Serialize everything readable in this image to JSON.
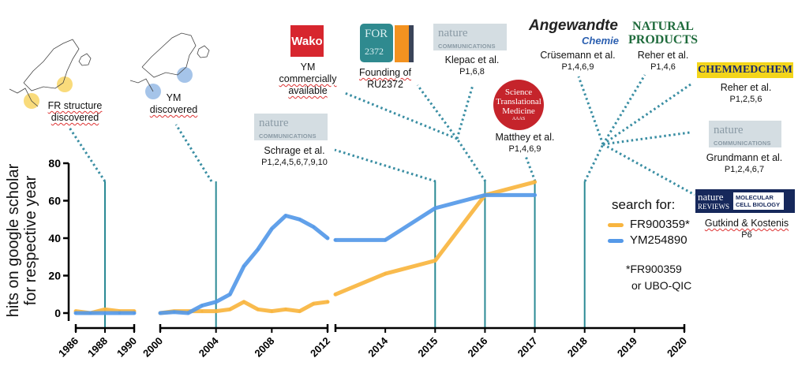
{
  "chart_data": {
    "type": "line",
    "ylabel_lines": [
      "hits on google scholar",
      "for respective year"
    ],
    "ylim": [
      0,
      80
    ],
    "yticks": [
      0,
      20,
      40,
      60,
      80
    ],
    "x_segments": [
      [
        1986,
        1990
      ],
      [
        2000,
        2012
      ],
      [
        2013,
        2020
      ]
    ],
    "xtick_labels": [
      "1986",
      "1988",
      "1990",
      "2000",
      "2004",
      "2008",
      "2012",
      "2014",
      "2015",
      "2016",
      "2017",
      "2018",
      "2019",
      "2020"
    ],
    "series": [
      {
        "name": "FR900359*",
        "color": "#f8b53f",
        "x": [
          1986,
          1987,
          1988,
          1989,
          1990,
          2000,
          2001,
          2002,
          2003,
          2004,
          2005,
          2006,
          2007,
          2008,
          2009,
          2010,
          2011,
          2012,
          2013,
          2014,
          2015,
          2016,
          2017
        ],
        "y": [
          1,
          0,
          2,
          1,
          1,
          0,
          1,
          1,
          1,
          1,
          2,
          6,
          2,
          1,
          2,
          1,
          5,
          6,
          10,
          21,
          28,
          63,
          70
        ]
      },
      {
        "name": "YM254890",
        "color": "#5599e8",
        "x": [
          1986,
          1987,
          1988,
          1989,
          1990,
          2000,
          2001,
          2002,
          2003,
          2004,
          2005,
          2006,
          2007,
          2008,
          2009,
          2010,
          2011,
          2012,
          2013,
          2014,
          2015,
          2016,
          2017
        ],
        "y": [
          0,
          0,
          0,
          0,
          0,
          0,
          0.5,
          0,
          4,
          6,
          10,
          25,
          34,
          45,
          52,
          50,
          46,
          40,
          39,
          39,
          56,
          63,
          63
        ]
      }
    ],
    "legend": {
      "title": "search for:",
      "placement": "right"
    },
    "note": [
      "*FR900359",
      "or UBO-QIC"
    ],
    "milestone_years": [
      1988,
      2004,
      2015,
      2016,
      2017,
      2018
    ],
    "milestone_color": "#2b8a95"
  },
  "annotations": {
    "fr_structure": {
      "line1": "FR structure",
      "line2": "discovered"
    },
    "ym_discovered": {
      "line1": "YM",
      "line2": "discovered"
    },
    "ym_commercial": {
      "logo": "Wako",
      "line1": "YM",
      "line2": "commercially",
      "line3": "available"
    },
    "founding": {
      "logo_top": "FOR",
      "logo_bottom": "2372",
      "line1": "Founding of",
      "line2": "RU2372"
    },
    "klepac": {
      "logo1": "nature",
      "logo2": "COMMUNICATIONS",
      "author": "Klepac et al.",
      "papers": "P1,6,8"
    },
    "schrage": {
      "logo1": "nature",
      "logo2": "COMMUNICATIONS",
      "author": "Schrage et al.",
      "papers": "P1,2,4,5,6,7,9,10"
    },
    "matthey": {
      "logo1": "Science",
      "logo2": "Translational",
      "logo3": "Medicine",
      "logo4": "AAAS",
      "author": "Matthey et al.",
      "papers": "P1,4,6,9"
    },
    "crusemann": {
      "logo1": "Angewandte",
      "logo2": "Chemie",
      "author": "Crüsemann et al.",
      "papers": "P1,4,6,9"
    },
    "reher_np": {
      "logo1": "NATURAL",
      "logo2": "PRODUCTS",
      "author": "Reher et al.",
      "papers": "P1,4,6"
    },
    "reher_cmc": {
      "logo": "CHEMMEDCHEM",
      "author": "Reher et al.",
      "papers": "P1,2,5,6"
    },
    "grundmann": {
      "logo1": "nature",
      "logo2": "COMMUNICATIONS",
      "author": "Grundmann et al.",
      "papers": "P1,2,4,6,7"
    },
    "gutkind": {
      "logo1": "nature",
      "logo2": "REVIEWS",
      "logo3": "MOLECULAR CELL BIOLOGY",
      "author": "Gutkind & Kostenis",
      "papers": "P6"
    }
  }
}
